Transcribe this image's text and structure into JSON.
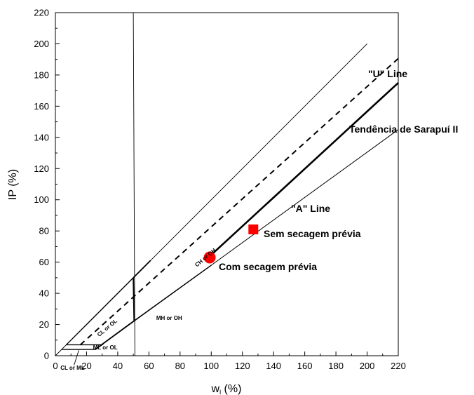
{
  "chart_data": {
    "type": "scatter",
    "xlabel": "w",
    "xlabel_sub": "l",
    "xlabel_unit": " (%)",
    "ylabel": "IP (%)",
    "xlim": [
      0,
      220
    ],
    "ylim": [
      0,
      220
    ],
    "x_ticks": [
      0,
      20,
      40,
      60,
      80,
      100,
      120,
      140,
      160,
      180,
      200,
      220
    ],
    "y_ticks": [
      0,
      20,
      40,
      60,
      80,
      100,
      120,
      140,
      160,
      180,
      200,
      220
    ],
    "grid": false,
    "reference_lines": [
      {
        "name": "\"U\" Line",
        "points": [
          [
            16,
            7
          ],
          [
            220,
            190.6
          ]
        ],
        "style": "dashed"
      },
      {
        "name": "\"A\" Line",
        "points": [
          [
            25.5,
            4
          ],
          [
            220,
            145
          ]
        ],
        "style": "thin"
      },
      {
        "name": "Tendência de Sarapuí II",
        "points": [
          [
            96,
            61
          ],
          [
            220,
            175
          ]
        ],
        "style": "thick"
      }
    ],
    "boundary_lines": [
      {
        "points": [
          [
            50,
            220
          ],
          [
            51,
            0
          ]
        ]
      },
      {
        "points": [
          [
            0,
            0
          ],
          [
            200,
            200
          ]
        ]
      }
    ],
    "points": [
      {
        "name": "Sem secagem prévia",
        "x": 127,
        "y": 81,
        "marker": "square",
        "color": "#ff0000"
      },
      {
        "name": "Com secagem prévia",
        "x": 99,
        "y": 63,
        "marker": "circle",
        "color": "#ff0000"
      }
    ],
    "zone_labels": [
      {
        "text": "CH or OH",
        "x": 97,
        "y": 62,
        "angle": -40
      },
      {
        "text": "CL or OL",
        "x": 34,
        "y": 17,
        "angle": -40
      },
      {
        "text": "MH or OH",
        "x": 73,
        "y": 23,
        "angle": 0
      },
      {
        "text": "ML or OL",
        "x": 32,
        "y": 4,
        "angle": 0
      },
      {
        "text": "CL or ML",
        "x": 11,
        "y": -9,
        "angle": 0
      }
    ]
  }
}
